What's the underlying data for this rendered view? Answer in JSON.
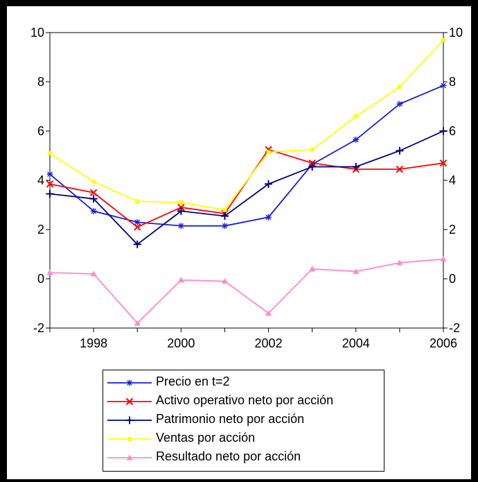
{
  "chart_data": {
    "type": "line",
    "x": [
      1997,
      1998,
      1999,
      2000,
      2001,
      2002,
      2003,
      2004,
      2005,
      2006
    ],
    "xticks": [
      "1998",
      "2000",
      "2002",
      "2004",
      "2006"
    ],
    "yticks": [
      "-2",
      "0",
      "2",
      "4",
      "6",
      "8",
      "10"
    ],
    "ylim": [
      -2,
      10
    ],
    "dual_axis": true,
    "grid": false,
    "legend_position": "bottom",
    "series": [
      {
        "name": "Precio en t=2",
        "color": "#1a1adc",
        "marker": "asterisk",
        "values": [
          4.25,
          2.75,
          2.3,
          2.15,
          2.15,
          2.5,
          4.65,
          5.65,
          7.1,
          7.85
        ]
      },
      {
        "name": "Activo operativo neto por acción",
        "color": "#ff0000",
        "marker": "x",
        "values": [
          3.85,
          3.5,
          2.1,
          2.9,
          2.65,
          5.25,
          4.7,
          4.45,
          4.45,
          4.7
        ]
      },
      {
        "name": "Patrimonio neto por acción",
        "color": "#000080",
        "marker": "plus",
        "values": [
          3.45,
          3.25,
          1.4,
          2.75,
          2.55,
          3.85,
          4.55,
          4.55,
          5.2,
          6.0
        ]
      },
      {
        "name": "Ventas por acción",
        "color": "#ffff00",
        "marker": "square",
        "values": [
          5.1,
          3.95,
          3.15,
          3.1,
          2.8,
          5.15,
          5.25,
          6.6,
          7.8,
          9.7
        ]
      },
      {
        "name": "Resultado neto por acción",
        "color": "#ff88cc",
        "marker": "triangle",
        "values": [
          0.25,
          0.2,
          -1.8,
          -0.05,
          -0.1,
          -1.4,
          0.4,
          0.3,
          0.65,
          0.8
        ]
      }
    ]
  }
}
